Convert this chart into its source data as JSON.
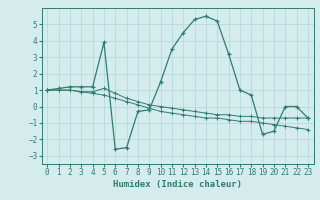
{
  "xlabel": "Humidex (Indice chaleur)",
  "x": [
    0,
    1,
    2,
    3,
    4,
    5,
    6,
    7,
    8,
    9,
    10,
    11,
    12,
    13,
    14,
    15,
    16,
    17,
    18,
    19,
    20,
    21,
    22,
    23
  ],
  "line1": [
    1.0,
    1.1,
    1.2,
    1.2,
    1.2,
    3.9,
    -2.6,
    -2.5,
    -0.3,
    -0.2,
    1.5,
    3.5,
    4.5,
    5.3,
    5.5,
    5.2,
    3.2,
    1.0,
    0.7,
    -1.7,
    -1.5,
    0.0,
    0.0,
    -0.7
  ],
  "line2": [
    1.0,
    1.0,
    1.0,
    0.9,
    0.8,
    0.7,
    0.5,
    0.3,
    0.1,
    -0.1,
    -0.3,
    -0.4,
    -0.5,
    -0.6,
    -0.7,
    -0.7,
    -0.8,
    -0.9,
    -0.9,
    -1.0,
    -1.1,
    -1.2,
    -1.3,
    -1.4
  ],
  "line3": [
    1.0,
    1.0,
    1.0,
    0.9,
    0.9,
    1.1,
    0.8,
    0.5,
    0.3,
    0.1,
    0.0,
    -0.1,
    -0.2,
    -0.3,
    -0.4,
    -0.5,
    -0.5,
    -0.6,
    -0.6,
    -0.7,
    -0.7,
    -0.7,
    -0.7,
    -0.7
  ],
  "color": "#2e7d6e",
  "bg_color": "#d4ecec",
  "grid_color": "#b8d8d8",
  "ylim": [
    -3.5,
    6.0
  ],
  "xlim": [
    -0.5,
    23.5
  ],
  "yticks": [
    -3,
    -2,
    -1,
    0,
    1,
    2,
    3,
    4,
    5
  ],
  "xticks": [
    0,
    1,
    2,
    3,
    4,
    5,
    6,
    7,
    8,
    9,
    10,
    11,
    12,
    13,
    14,
    15,
    16,
    17,
    18,
    19,
    20,
    21,
    22,
    23
  ],
  "tick_fontsize": 5.5,
  "xlabel_fontsize": 6.5
}
